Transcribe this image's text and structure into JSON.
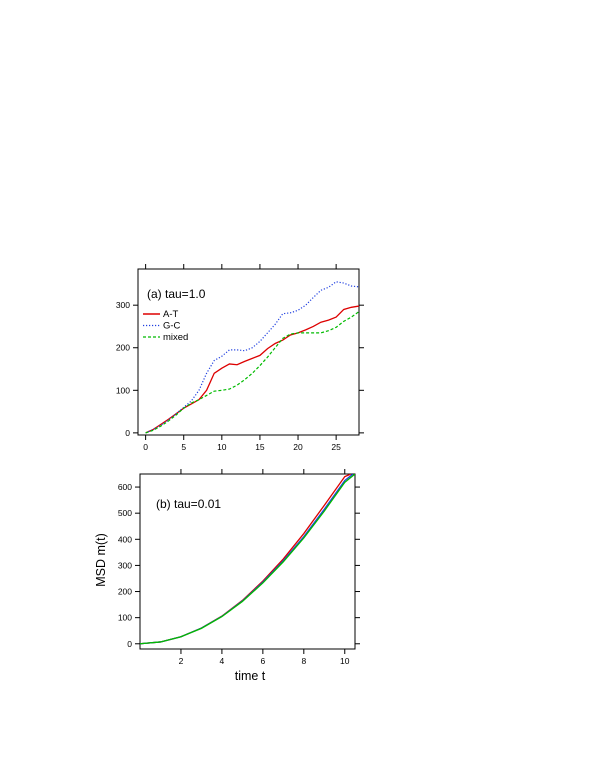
{
  "chart_data": [
    {
      "type": "line",
      "annotation": "(a) tau=1.0",
      "xlim": [
        -1,
        28
      ],
      "ylim": [
        -5,
        385
      ],
      "xticks": [
        0,
        5,
        10,
        15,
        20,
        25
      ],
      "yticks": [
        0,
        100,
        200,
        300
      ],
      "legend": {
        "placement": "top-left"
      },
      "grid": false,
      "series": [
        {
          "name": "A-T",
          "color": "#dd0000",
          "style": "solid",
          "x": [
            0,
            1,
            2,
            3,
            4,
            5,
            6,
            7,
            8,
            9,
            10,
            11,
            12,
            13,
            14,
            15,
            16,
            17,
            18,
            19,
            20,
            21,
            22,
            23,
            24,
            25,
            26,
            27,
            28
          ],
          "y": [
            0,
            8,
            20,
            32,
            45,
            58,
            68,
            78,
            100,
            140,
            152,
            162,
            160,
            168,
            175,
            182,
            198,
            210,
            218,
            230,
            235,
            242,
            250,
            260,
            265,
            272,
            290,
            295,
            298
          ]
        },
        {
          "name": "G-C",
          "color": "#1f3fe0",
          "style": "dotted",
          "x": [
            0,
            1,
            2,
            3,
            4,
            5,
            6,
            7,
            8,
            9,
            10,
            11,
            12,
            13,
            14,
            15,
            16,
            17,
            18,
            19,
            20,
            21,
            22,
            23,
            24,
            25,
            26,
            27,
            28
          ],
          "y": [
            0,
            8,
            18,
            30,
            45,
            60,
            75,
            100,
            140,
            170,
            180,
            195,
            195,
            193,
            200,
            215,
            235,
            255,
            280,
            282,
            288,
            300,
            318,
            335,
            342,
            355,
            352,
            345,
            343
          ]
        },
        {
          "name": "mixed",
          "color": "#00bb00",
          "style": "dashed",
          "x": [
            0,
            1,
            2,
            3,
            4,
            5,
            6,
            7,
            8,
            9,
            10,
            11,
            12,
            13,
            14,
            15,
            16,
            17,
            18,
            19,
            20,
            21,
            22,
            23,
            24,
            25,
            26,
            27,
            28
          ],
          "y": [
            0,
            6,
            16,
            28,
            42,
            58,
            70,
            78,
            88,
            98,
            100,
            103,
            112,
            125,
            140,
            158,
            178,
            200,
            222,
            232,
            235,
            235,
            235,
            235,
            240,
            248,
            262,
            272,
            285
          ]
        }
      ]
    },
    {
      "type": "line",
      "annotation": "(b) tau=0.01",
      "xlabel": "time t",
      "ylabel": "MSD m(t)",
      "xlim": [
        0,
        10.5
      ],
      "ylim": [
        -20,
        650
      ],
      "xticks": [
        2,
        4,
        6,
        8,
        10
      ],
      "yticks": [
        0,
        100,
        200,
        300,
        400,
        500,
        600
      ],
      "grid": false,
      "series": [
        {
          "color": "#dd0000",
          "x": [
            0,
            1,
            2,
            3,
            4,
            5,
            6,
            7,
            8,
            9,
            10,
            10.3
          ],
          "y": [
            0,
            7,
            27,
            60,
            106,
            166,
            240,
            325,
            422,
            530,
            640,
            650
          ]
        },
        {
          "color": "#1f3fe0",
          "x": [
            0,
            1,
            2,
            3,
            4,
            5,
            6,
            7,
            8,
            9,
            10,
            10.4
          ],
          "y": [
            0,
            7,
            27,
            60,
            105,
            164,
            236,
            318,
            410,
            515,
            625,
            650
          ]
        },
        {
          "color": "#00bb00",
          "x": [
            0,
            1,
            2,
            3,
            4,
            5,
            6,
            7,
            8,
            9,
            10,
            10.5
          ],
          "y": [
            0,
            7,
            27,
            59,
            104,
            162,
            233,
            314,
            405,
            508,
            618,
            650
          ]
        }
      ]
    }
  ]
}
